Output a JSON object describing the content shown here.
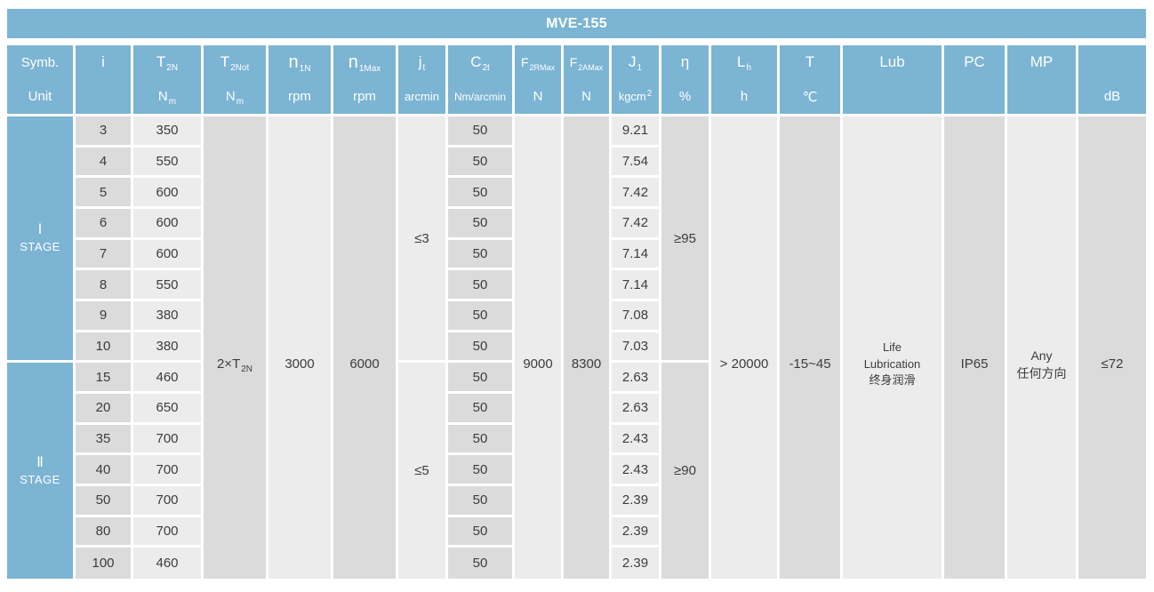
{
  "title": "MVE-155",
  "colors": {
    "header_blue": "#7CB4D3",
    "column_dark_gray": "#DBDBDB",
    "column_light_gray": "#ECECEC",
    "body_text": "#3C3C3C",
    "separator_white": "#FFFFFF"
  },
  "header": {
    "symb_label": "Symb.",
    "unit_label": "Unit",
    "columns": [
      {
        "key": "i",
        "sym_main": "i",
        "sym_sub": "",
        "unit_main": "",
        "unit_sub": ""
      },
      {
        "key": "T2N",
        "sym_main": "T",
        "sym_sub": "2N",
        "unit_main": "N",
        "unit_sub": "m"
      },
      {
        "key": "T2Not",
        "sym_main": "T",
        "sym_sub": "2Not",
        "unit_main": "N",
        "unit_sub": "m"
      },
      {
        "key": "n1N",
        "sym_main": "n",
        "sym_sub": "1N",
        "unit_main": "rpm"
      },
      {
        "key": "n1Max",
        "sym_main": "n",
        "sym_sub": "1Max",
        "unit_main": "rpm"
      },
      {
        "key": "jt",
        "sym_main": "j",
        "sym_sub": "t",
        "unit_main": "arcmin"
      },
      {
        "key": "C2t",
        "sym_main": "C",
        "sym_sub": "2t",
        "unit_main": "Nm/arcmin"
      },
      {
        "key": "F2RMax",
        "sym_main": "F",
        "sym_sub": "2RMax",
        "unit_main": "N"
      },
      {
        "key": "F2AMax",
        "sym_main": "F",
        "sym_sub": "2AMax",
        "unit_main": "N"
      },
      {
        "key": "J1",
        "sym_main": "J",
        "sym_sub": "1",
        "unit_main": "kgcm",
        "unit_sup": "2"
      },
      {
        "key": "eta",
        "sym_main": "η",
        "unit_main": "%"
      },
      {
        "key": "Lh",
        "sym_main": "L",
        "sym_sub": "h",
        "unit_main": "h"
      },
      {
        "key": "T",
        "sym_main": "T",
        "unit_main": "℃"
      },
      {
        "key": "Lub",
        "sym_main": "Lub"
      },
      {
        "key": "PC",
        "sym_main": "PC"
      },
      {
        "key": "MP",
        "sym_main": "MP"
      },
      {
        "key": "dB",
        "unit_main": "dB"
      }
    ]
  },
  "stages": [
    {
      "numeral": "Ⅰ",
      "label": "STAGE",
      "jt": "≤3",
      "eta": "≥95",
      "rows": [
        {
          "i": "3",
          "T2N": "350",
          "C2t": "50",
          "J1": "9.21"
        },
        {
          "i": "4",
          "T2N": "550",
          "C2t": "50",
          "J1": "7.54"
        },
        {
          "i": "5",
          "T2N": "600",
          "C2t": "50",
          "J1": "7.42"
        },
        {
          "i": "6",
          "T2N": "600",
          "C2t": "50",
          "J1": "7.42"
        },
        {
          "i": "7",
          "T2N": "600",
          "C2t": "50",
          "J1": "7.14"
        },
        {
          "i": "8",
          "T2N": "550",
          "C2t": "50",
          "J1": "7.14"
        },
        {
          "i": "9",
          "T2N": "380",
          "C2t": "50",
          "J1": "7.08"
        },
        {
          "i": "10",
          "T2N": "380",
          "C2t": "50",
          "J1": "7.03"
        }
      ]
    },
    {
      "numeral": "Ⅱ",
      "label": "STAGE",
      "jt": "≤5",
      "eta": "≥90",
      "rows": [
        {
          "i": "15",
          "T2N": "460",
          "C2t": "50",
          "J1": "2.63"
        },
        {
          "i": "20",
          "T2N": "650",
          "C2t": "50",
          "J1": "2.63"
        },
        {
          "i": "35",
          "T2N": "700",
          "C2t": "50",
          "J1": "2.43"
        },
        {
          "i": "40",
          "T2N": "700",
          "C2t": "50",
          "J1": "2.43"
        },
        {
          "i": "50",
          "T2N": "700",
          "C2t": "50",
          "J1": "2.39"
        },
        {
          "i": "80",
          "T2N": "700",
          "C2t": "50",
          "J1": "2.39"
        },
        {
          "i": "100",
          "T2N": "460",
          "C2t": "50",
          "J1": "2.39"
        }
      ]
    }
  ],
  "spans": {
    "T2Not": {
      "main": "2×T",
      "sub": "2N"
    },
    "n1N": "3000",
    "n1Max": "6000",
    "F2RMax": "9000",
    "F2AMax": "8300",
    "Lh": "> 20000",
    "T": "-15~45",
    "Lub": {
      "lines": [
        "Life",
        "Lubrication",
        "终身润滑"
      ]
    },
    "PC": "IP65",
    "MP": {
      "lines": [
        "Any",
        "任何方向"
      ]
    },
    "dB": "≤72"
  }
}
